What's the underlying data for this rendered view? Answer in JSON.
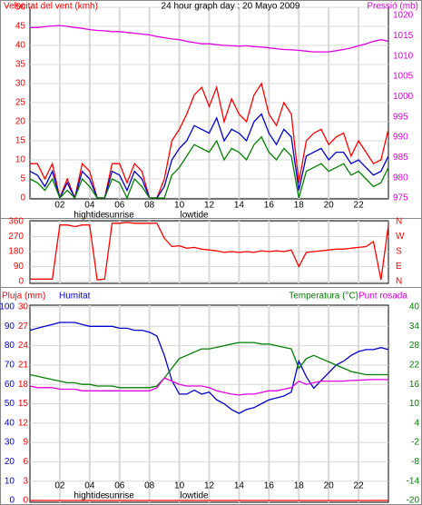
{
  "chart_data": [
    {
      "type": "line",
      "title": "24 hour graph day : 20 Mayo 2009",
      "y_label": "Velocitat del vent (kmh)",
      "y2_label": "Pressió (mb)",
      "x": [
        0,
        0.5,
        1,
        1.5,
        2,
        2.5,
        3,
        3.5,
        4,
        4.5,
        5,
        5.5,
        6,
        6.5,
        7,
        7.5,
        8,
        8.5,
        9,
        9.5,
        10,
        10.5,
        11,
        11.5,
        12,
        12.5,
        13,
        13.5,
        14,
        14.5,
        15,
        15.5,
        16,
        16.5,
        17,
        17.5,
        18,
        18.5,
        19,
        19.5,
        20,
        20.5,
        21,
        21.5,
        22,
        22.5,
        23,
        23.5,
        24
      ],
      "xlim": [
        0,
        24
      ],
      "xticks": [
        {
          "value": 2,
          "label": "02"
        },
        {
          "value": 4,
          "label": "04"
        },
        {
          "value": 6,
          "label": "06"
        },
        {
          "value": 8,
          "label": "08"
        },
        10,
        12,
        14,
        16,
        18,
        20,
        22
      ],
      "events": [
        {
          "label": "hightide",
          "x": 4
        },
        {
          "label": "sunrise",
          "x": 6
        },
        {
          "label": "lowtide",
          "x": 11
        }
      ],
      "ylim": [
        0,
        50
      ],
      "yticks": [
        0,
        5,
        10,
        15,
        20,
        25,
        30,
        35,
        40,
        45,
        50
      ],
      "y_color": "#ff0000",
      "y2lim": [
        975,
        1022
      ],
      "y2ticks": [
        975,
        980,
        985,
        990,
        995,
        1000,
        1005,
        1010,
        1015,
        1020
      ],
      "y2_color": "#e000e0",
      "grid": true,
      "series": [
        {
          "color": "#ff0000",
          "axis": "y",
          "values": [
            9,
            9,
            5,
            9,
            0,
            5,
            0,
            9,
            7,
            0,
            0,
            9,
            9,
            4,
            9,
            7,
            0,
            0,
            5,
            15,
            18,
            22,
            27,
            29,
            24,
            29,
            20,
            26,
            22,
            20,
            27,
            30,
            22,
            19,
            25,
            22,
            4,
            15,
            17,
            18,
            14,
            16,
            17,
            11,
            15,
            12,
            9,
            10,
            18
          ]
        },
        {
          "color": "#0000cc",
          "axis": "y",
          "values": [
            7,
            6,
            3,
            7,
            0,
            4,
            0,
            7,
            5,
            0,
            0,
            7,
            6,
            2,
            7,
            5,
            0,
            0,
            3,
            10,
            13,
            15,
            19,
            18,
            17,
            21,
            15,
            18,
            17,
            15,
            20,
            22,
            17,
            14,
            18,
            16,
            2,
            11,
            12,
            13,
            10,
            12,
            12,
            9,
            10,
            8,
            6,
            7,
            11
          ]
        },
        {
          "color": "#008000",
          "axis": "y",
          "values": [
            5,
            4,
            2,
            5,
            0,
            2,
            0,
            5,
            3,
            0,
            0,
            5,
            4,
            0,
            5,
            3,
            0,
            0,
            0,
            6,
            8,
            11,
            14,
            13,
            12,
            15,
            10,
            13,
            12,
            10,
            14,
            16,
            12,
            10,
            13,
            11,
            0,
            7,
            8,
            9,
            7,
            8,
            9,
            6,
            7,
            5,
            3,
            4,
            8
          ]
        },
        {
          "color": "#e000e0",
          "axis": "y2",
          "values": [
            1017,
            1017,
            1017.2,
            1017.4,
            1017.5,
            1017.3,
            1017,
            1016.8,
            1016.5,
            1016.3,
            1016.2,
            1016,
            1016,
            1015.8,
            1015.6,
            1015.4,
            1015.2,
            1014.8,
            1014.5,
            1014.2,
            1014,
            1013.6,
            1013.3,
            1013,
            1013,
            1012.8,
            1012.6,
            1012.5,
            1012.4,
            1012.5,
            1012.3,
            1012.2,
            1012,
            1011.8,
            1011.6,
            1011.5,
            1011.4,
            1011.2,
            1011,
            1011,
            1011,
            1011.3,
            1011.6,
            1012,
            1012.5,
            1013,
            1013.6,
            1014,
            1013.6
          ]
        }
      ]
    },
    {
      "type": "line",
      "x": [
        0,
        0.5,
        1,
        1.5,
        2,
        2.5,
        3,
        3.5,
        4,
        4.5,
        5,
        5.5,
        6,
        6.5,
        7,
        7.5,
        8,
        8.5,
        9,
        9.5,
        10,
        10.5,
        11,
        11.5,
        12,
        12.5,
        13,
        13.5,
        14,
        14.5,
        15,
        15.5,
        16,
        16.5,
        17,
        17.5,
        18,
        18.5,
        19,
        19.5,
        20,
        20.5,
        21,
        21.5,
        22,
        22.5,
        23,
        23.5,
        24
      ],
      "xlim": [
        0,
        24
      ],
      "xticks": [
        2,
        4,
        6,
        8,
        10,
        12,
        14,
        16,
        18,
        20,
        22
      ],
      "ylim": [
        0,
        360
      ],
      "yticks": [
        0,
        90,
        180,
        270,
        360
      ],
      "y_color": "#ff0000",
      "y2lim": [
        0,
        360
      ],
      "y2ticks": [
        {
          "value": 0,
          "label": "N"
        },
        {
          "value": 90,
          "label": "E"
        },
        {
          "value": 180,
          "label": "S"
        },
        {
          "value": 270,
          "label": "W"
        },
        {
          "value": 360,
          "label": "N"
        }
      ],
      "y2_color": "#ff0000",
      "grid": true,
      "series": [
        {
          "color": "#ff0000",
          "axis": "y",
          "values": [
            15,
            15,
            15,
            15,
            340,
            340,
            330,
            340,
            340,
            10,
            15,
            350,
            350,
            355,
            350,
            350,
            350,
            350,
            260,
            210,
            215,
            200,
            205,
            195,
            190,
            185,
            175,
            180,
            175,
            180,
            175,
            185,
            180,
            185,
            180,
            190,
            90,
            175,
            180,
            185,
            190,
            195,
            195,
            200,
            205,
            210,
            240,
            10,
            340
          ]
        }
      ]
    },
    {
      "type": "line",
      "y3_label": "Pluja (mm)",
      "y_label": "Humitat",
      "y2_label": "Temperatura (°C)",
      "y2b_label": "Punt rosada",
      "x": [
        0,
        0.5,
        1,
        1.5,
        2,
        2.5,
        3,
        3.5,
        4,
        4.5,
        5,
        5.5,
        6,
        6.5,
        7,
        7.5,
        8,
        8.5,
        9,
        9.5,
        10,
        10.5,
        11,
        11.5,
        12,
        12.5,
        13,
        13.5,
        14,
        14.5,
        15,
        15.5,
        16,
        16.5,
        17,
        17.5,
        18,
        18.5,
        19,
        19.5,
        20,
        20.5,
        21,
        21.5,
        22,
        22.5,
        23,
        23.5,
        24
      ],
      "xlim": [
        0,
        24
      ],
      "xticks": [
        {
          "value": 2,
          "label": "02"
        },
        {
          "value": 4,
          "label": "04"
        },
        {
          "value": 6,
          "label": "06"
        },
        {
          "value": 8,
          "label": "08"
        },
        10,
        12,
        14,
        16,
        18,
        20,
        22
      ],
      "events": [
        {
          "label": "hightide",
          "x": 4
        },
        {
          "label": "sunrise",
          "x": 6
        },
        {
          "label": "lowtide",
          "x": 11
        }
      ],
      "ylim": [
        0,
        100
      ],
      "yticks": [
        0,
        10,
        20,
        30,
        40,
        50,
        60,
        70,
        80,
        90,
        100
      ],
      "y_color": "#0000cc",
      "y3lim": [
        0,
        30
      ],
      "y3ticks": [
        0,
        3,
        6,
        9,
        12,
        15,
        18,
        21,
        24,
        27,
        30
      ],
      "y3_color": "#ff0000",
      "y2lim": [
        -20,
        40
      ],
      "y2ticks": [
        -20,
        -14,
        -8,
        -2,
        4,
        10,
        16,
        22,
        28,
        34,
        40
      ],
      "y2_color": "#008000",
      "grid": true,
      "series": [
        {
          "color": "#0000cc",
          "axis": "y",
          "values": [
            88,
            89,
            90,
            91,
            92,
            92,
            92,
            91,
            90,
            90,
            90,
            90,
            89,
            89,
            88,
            88,
            87,
            85,
            75,
            62,
            55,
            55,
            57,
            55,
            56,
            52,
            50,
            47,
            45,
            47,
            48,
            50,
            52,
            53,
            54,
            56,
            72,
            64,
            58,
            62,
            66,
            70,
            72,
            75,
            77,
            78,
            78,
            79,
            78
          ]
        },
        {
          "color": "#ff0000",
          "axis": "y3",
          "values": [
            0,
            0,
            0,
            0,
            0,
            0,
            0,
            0,
            0,
            0,
            0,
            0,
            0,
            0,
            0,
            0,
            0,
            0,
            0,
            0,
            0,
            0,
            0,
            0,
            0,
            0,
            0,
            0,
            0,
            0,
            0,
            0,
            0,
            0,
            0,
            0,
            0,
            0,
            0,
            0,
            0,
            0,
            0,
            0,
            0,
            0,
            0,
            0,
            0
          ]
        },
        {
          "color": "#008000",
          "axis": "y2",
          "values": [
            19,
            18.5,
            18,
            17.5,
            17,
            16.5,
            16.5,
            16,
            16,
            15.5,
            15.5,
            15.5,
            15,
            15,
            15,
            15,
            15,
            15.5,
            18,
            21,
            24,
            25,
            26,
            27,
            27,
            27.5,
            28,
            28.5,
            29,
            29,
            29,
            28.5,
            28.5,
            28,
            27.5,
            27,
            21,
            24,
            25,
            24,
            23,
            22,
            21,
            20,
            19.5,
            19,
            19,
            19,
            19
          ]
        },
        {
          "color": "#e000e0",
          "axis": "y2",
          "values": [
            15.5,
            15,
            15,
            15,
            14.5,
            14.5,
            14.5,
            14,
            14,
            14,
            14,
            14,
            14,
            14,
            14,
            14,
            14,
            15,
            18,
            17,
            16,
            15.5,
            15.5,
            15.5,
            15,
            14,
            13.5,
            13,
            12.7,
            13,
            13,
            13.5,
            14,
            14,
            14.5,
            15,
            17,
            16,
            16.5,
            17,
            17,
            17,
            17,
            17.2,
            17.3,
            17.4,
            17.5,
            17.5,
            17.5
          ]
        }
      ]
    }
  ]
}
